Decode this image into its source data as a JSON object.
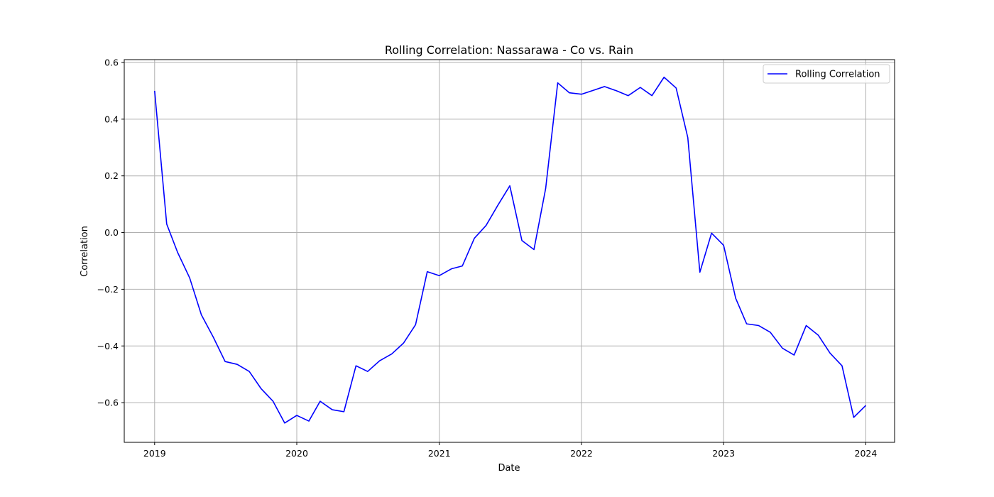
{
  "chart_data": {
    "type": "line",
    "title": "Rolling Correlation: Nassarawa - Co vs. Rain",
    "xlabel": "Date",
    "ylabel": "Correlation",
    "xlim": [
      "2018-10-15",
      "2024-03-15"
    ],
    "ylim": [
      -0.74,
      0.61
    ],
    "xticks": [
      {
        "label": "2019",
        "date": "2019-01-01"
      },
      {
        "label": "2020",
        "date": "2020-01-01"
      },
      {
        "label": "2021",
        "date": "2021-01-01"
      },
      {
        "label": "2022",
        "date": "2022-01-01"
      },
      {
        "label": "2023",
        "date": "2023-01-01"
      },
      {
        "label": "2024",
        "date": "2024-01-01"
      }
    ],
    "yticks": [
      {
        "label": "−0.6",
        "value": -0.6
      },
      {
        "label": "−0.4",
        "value": -0.4
      },
      {
        "label": "−0.2",
        "value": -0.2
      },
      {
        "label": "0.0",
        "value": 0.0
      },
      {
        "label": "0.2",
        "value": 0.2
      },
      {
        "label": "0.4",
        "value": 0.4
      },
      {
        "label": "0.6",
        "value": 0.6
      }
    ],
    "grid": true,
    "legend": {
      "position": "top-right"
    },
    "series": [
      {
        "name": "Rolling Correlation",
        "color": "#0000ff",
        "x": [
          "2019-01-01",
          "2019-02-01",
          "2019-03-01",
          "2019-04-01",
          "2019-05-01",
          "2019-06-01",
          "2019-07-01",
          "2019-08-01",
          "2019-09-01",
          "2019-10-01",
          "2019-11-01",
          "2019-12-01",
          "2020-01-01",
          "2020-02-01",
          "2020-03-01",
          "2020-04-01",
          "2020-05-01",
          "2020-06-01",
          "2020-07-01",
          "2020-08-01",
          "2020-09-01",
          "2020-10-01",
          "2020-11-01",
          "2020-12-01",
          "2021-01-01",
          "2021-02-01",
          "2021-03-01",
          "2021-04-01",
          "2021-05-01",
          "2021-06-01",
          "2021-07-01",
          "2021-08-01",
          "2021-09-01",
          "2021-10-01",
          "2021-11-01",
          "2021-12-01",
          "2022-01-01",
          "2022-02-01",
          "2022-03-01",
          "2022-04-01",
          "2022-05-01",
          "2022-06-01",
          "2022-07-01",
          "2022-08-01",
          "2022-09-01",
          "2022-10-01",
          "2022-11-01",
          "2022-12-01",
          "2023-01-01",
          "2023-02-01",
          "2023-03-01",
          "2023-04-01",
          "2023-05-01",
          "2023-06-01",
          "2023-07-01",
          "2023-08-01",
          "2023-09-01",
          "2023-10-01",
          "2023-11-01",
          "2023-12-01",
          "2024-01-01"
        ],
        "y": [
          0.5,
          0.03,
          -0.07,
          -0.16,
          -0.29,
          -0.37,
          -0.455,
          -0.465,
          -0.49,
          -0.55,
          -0.595,
          -0.672,
          -0.645,
          -0.665,
          -0.595,
          -0.625,
          -0.632,
          -0.47,
          -0.49,
          -0.452,
          -0.428,
          -0.39,
          -0.325,
          -0.138,
          -0.152,
          -0.128,
          -0.118,
          -0.02,
          0.025,
          0.098,
          0.165,
          -0.028,
          -0.06,
          0.155,
          0.528,
          0.493,
          0.488,
          0.502,
          0.515,
          0.5,
          0.483,
          0.512,
          0.483,
          0.548,
          0.51,
          0.335,
          -0.14,
          -0.002,
          -0.045,
          -0.232,
          -0.322,
          -0.328,
          -0.352,
          -0.408,
          -0.432,
          -0.328,
          -0.362,
          -0.425,
          -0.47,
          -0.652,
          -0.61
        ]
      }
    ]
  }
}
